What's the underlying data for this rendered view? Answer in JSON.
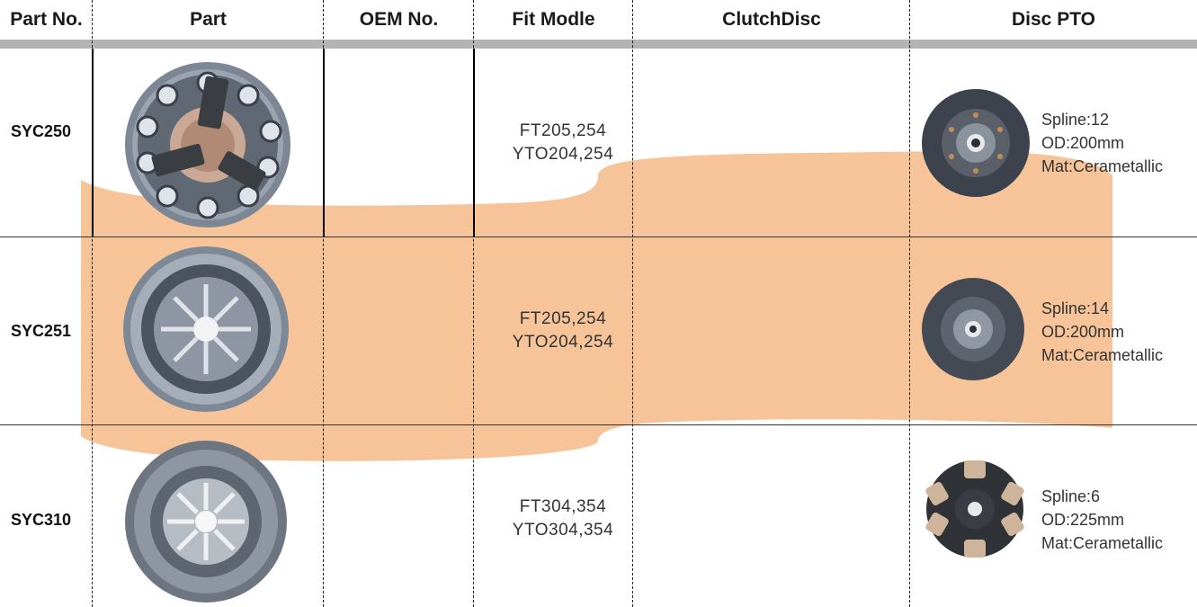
{
  "table": {
    "headers": {
      "part_no": "Part No.",
      "part": "Part",
      "oem_no": "OEM No.",
      "fit_model": "Fit Modle",
      "clutch_disc": "ClutchDisc",
      "disc_pto": "Disc PTO"
    },
    "rows": [
      {
        "part_no": "SYC250",
        "fit_line1": "FT205,254",
        "fit_line2": "YTO204,254",
        "spline": "Spline:12",
        "od": "OD:200mm",
        "mat": "Mat:Cerametallic"
      },
      {
        "part_no": "SYC251",
        "fit_line1": "FT205,254",
        "fit_line2": "YTO204,254",
        "spline": "Spline:14",
        "od": "OD:200mm",
        "mat": "Mat:Cerametallic"
      },
      {
        "part_no": "SYC310",
        "fit_line1": "FT304,354",
        "fit_line2": "YTO304,354",
        "spline": "Spline:6",
        "od": "OD:225mm",
        "mat": "Mat:Cerametallic"
      }
    ]
  },
  "colors": {
    "band": "#f7c49a",
    "header_bar": "#b3b3b3"
  },
  "images": {
    "row1_part": "pressure-plate-with-levers",
    "row2_part": "diaphragm-pressure-plate",
    "row3_part": "diaphragm-pressure-plate-large",
    "row1_disc": "organic-clutch-disc",
    "row2_disc": "organic-clutch-disc",
    "row3_disc": "cerametallic-button-disc"
  }
}
